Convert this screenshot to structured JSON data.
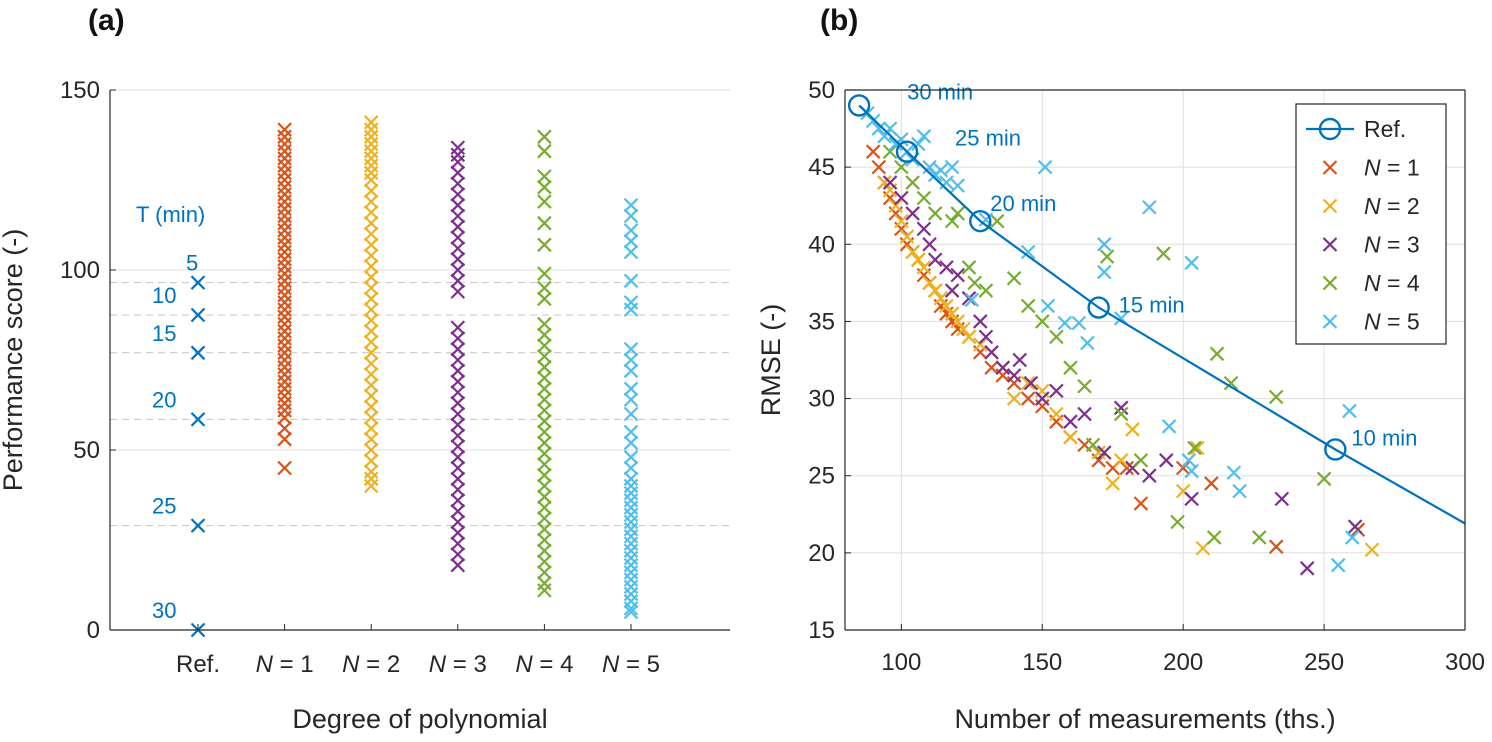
{
  "chart_data": [
    {
      "type": "scatter",
      "panel_label": "(a)",
      "xlabel": "Degree of polynomial",
      "ylabel": "Performance score (-)",
      "categories": [
        "Ref.",
        "N = 1",
        "N = 2",
        "N = 3",
        "N = 4",
        "N = 5"
      ],
      "ylim": [
        0,
        150
      ],
      "yticks": [
        0,
        50,
        100,
        150
      ],
      "grid": "horizontal",
      "ref_label_header": "T (min)",
      "ref_points": [
        {
          "label": "5",
          "value": 96.5
        },
        {
          "label": "10",
          "value": 87.5
        },
        {
          "label": "15",
          "value": 77
        },
        {
          "label": "20",
          "value": 58.5
        },
        {
          "label": "25",
          "value": 29
        },
        {
          "label": "30",
          "value": 0
        }
      ],
      "series": [
        {
          "name": "N = 1",
          "color": "#D95319",
          "values": [
            139,
            137,
            135,
            133,
            131,
            129,
            127,
            125,
            123,
            121,
            119,
            117,
            115,
            113,
            111,
            109,
            107,
            105,
            103,
            101,
            99,
            97,
            95,
            93,
            91,
            89,
            87,
            85,
            83,
            81,
            79,
            77,
            75,
            73,
            71,
            69,
            67,
            65,
            63,
            61,
            59,
            56,
            53,
            45
          ]
        },
        {
          "name": "N = 2",
          "color": "#EDB120",
          "values": [
            141,
            139,
            137,
            135,
            133,
            131,
            129,
            127,
            125,
            122,
            119,
            116,
            113,
            110,
            107,
            104,
            101,
            98,
            95,
            92,
            89,
            86,
            83,
            80,
            77,
            74,
            71,
            68,
            65,
            62,
            59,
            56,
            53,
            50,
            47,
            44,
            42,
            40
          ]
        },
        {
          "name": "N = 3",
          "color": "#7E2F8E",
          "values": [
            134,
            132,
            130,
            127,
            124,
            121,
            118,
            115,
            112,
            109,
            106,
            103,
            100,
            97,
            94,
            84,
            81,
            78,
            75,
            72,
            69,
            66,
            63,
            60,
            57,
            54,
            51,
            48,
            45,
            42,
            39,
            36,
            33,
            30,
            27,
            24,
            21,
            18
          ]
        },
        {
          "name": "N = 4",
          "color": "#77AC30",
          "values": [
            137,
            133,
            126,
            123,
            119,
            113,
            107,
            99,
            95,
            92,
            85,
            82,
            79,
            76,
            73,
            70,
            67,
            64,
            61,
            58,
            55,
            52,
            49,
            46,
            43,
            40,
            37,
            34,
            31,
            28,
            25,
            22,
            19,
            16,
            13,
            11
          ]
        },
        {
          "name": "N = 5",
          "color": "#4DBEEE",
          "values": [
            118,
            115,
            111,
            108,
            105,
            97,
            91,
            89,
            78,
            75,
            72,
            67,
            64,
            60,
            55,
            52,
            48,
            45,
            42,
            40,
            38,
            36,
            34,
            32,
            30,
            28,
            26,
            24,
            22,
            20,
            18,
            16,
            14,
            12,
            10,
            8,
            6,
            5
          ]
        }
      ]
    },
    {
      "type": "scatter",
      "panel_label": "(b)",
      "xlabel": "Number of measurements (ths.)",
      "ylabel": "RMSE (-)",
      "xlim": [
        80,
        300
      ],
      "ylim": [
        15,
        50
      ],
      "xticks": [
        100,
        150,
        200,
        250,
        300
      ],
      "yticks": [
        15,
        20,
        25,
        30,
        35,
        40,
        45,
        50
      ],
      "grid": "both",
      "legend": {
        "position": "top-right",
        "entries": [
          {
            "prefix": "",
            "label": "Ref.",
            "color": "#0072BD",
            "marker": "circle-line"
          },
          {
            "prefix": "N",
            "label": " = 1",
            "color": "#D95319",
            "marker": "x"
          },
          {
            "prefix": "N",
            "label": " = 2",
            "color": "#EDB120",
            "marker": "x"
          },
          {
            "prefix": "N",
            "label": " = 3",
            "color": "#7E2F8E",
            "marker": "x"
          },
          {
            "prefix": "N",
            "label": " = 4",
            "color": "#77AC30",
            "marker": "x"
          },
          {
            "prefix": "N",
            "label": " = 5",
            "color": "#4DBEEE",
            "marker": "x"
          }
        ]
      },
      "ref_line": {
        "color": "#0072BD",
        "points": [
          [
            85,
            49
          ],
          [
            102,
            46
          ],
          [
            128,
            41.5
          ],
          [
            170,
            35.9
          ],
          [
            254,
            26.7
          ],
          [
            300,
            21.9
          ]
        ],
        "labels": [
          {
            "x": 85,
            "y": 49,
            "text": "30 min"
          },
          {
            "x": 102,
            "y": 46,
            "text": "25 min"
          },
          {
            "x": 128,
            "y": 41.5,
            "text": "20 min"
          },
          {
            "x": 170,
            "y": 35.9,
            "text": "15 min"
          },
          {
            "x": 254,
            "y": 26.7,
            "text": "10 min"
          }
        ]
      },
      "series": [
        {
          "name": "N = 1",
          "color": "#D95319",
          "points": [
            [
              90,
              46
            ],
            [
              92,
              45
            ],
            [
              94,
              44
            ],
            [
              96,
              43
            ],
            [
              98,
              42
            ],
            [
              100,
              41
            ],
            [
              102,
              40
            ],
            [
              104,
              39.5
            ],
            [
              106,
              39
            ],
            [
              108,
              38
            ],
            [
              110,
              37.5
            ],
            [
              112,
              37
            ],
            [
              114,
              36
            ],
            [
              116,
              35.5
            ],
            [
              118,
              35
            ],
            [
              120,
              34.5
            ],
            [
              124,
              34
            ],
            [
              128,
              33
            ],
            [
              132,
              32
            ],
            [
              136,
              31.5
            ],
            [
              140,
              31
            ],
            [
              145,
              30
            ],
            [
              150,
              29.5
            ],
            [
              155,
              28.5
            ],
            [
              160,
              27.5
            ],
            [
              165,
              27
            ],
            [
              170,
              26
            ],
            [
              175,
              25.5
            ],
            [
              180,
              25.5
            ],
            [
              185,
              23.2
            ],
            [
              200,
              25.5
            ],
            [
              210,
              24.5
            ],
            [
              233,
              20.4
            ],
            [
              262,
              21.5
            ]
          ]
        },
        {
          "name": "N = 2",
          "color": "#EDB120",
          "points": [
            [
              94,
              44
            ],
            [
              96,
              43.5
            ],
            [
              98,
              42.5
            ],
            [
              100,
              41.5
            ],
            [
              102,
              40.5
            ],
            [
              104,
              39.5
            ],
            [
              106,
              39
            ],
            [
              108,
              38.5
            ],
            [
              110,
              37.5
            ],
            [
              112,
              37
            ],
            [
              114,
              36.5
            ],
            [
              116,
              36
            ],
            [
              118,
              35.5
            ],
            [
              120,
              35
            ],
            [
              122,
              34.5
            ],
            [
              124,
              34
            ],
            [
              128,
              33.5
            ],
            [
              132,
              33
            ],
            [
              136,
              32
            ],
            [
              140,
              30
            ],
            [
              145,
              31
            ],
            [
              150,
              30.5
            ],
            [
              155,
              29
            ],
            [
              160,
              27.5
            ],
            [
              170,
              26.5
            ],
            [
              175,
              24.5
            ],
            [
              178,
              26
            ],
            [
              182,
              25.5
            ],
            [
              182,
              28
            ],
            [
              200,
              24
            ],
            [
              205,
              26.8
            ],
            [
              207,
              20.3
            ],
            [
              267,
              20.2
            ]
          ]
        },
        {
          "name": "N = 3",
          "color": "#7E2F8E",
          "points": [
            [
              96,
              44
            ],
            [
              100,
              43
            ],
            [
              104,
              42
            ],
            [
              108,
              41
            ],
            [
              110,
              40
            ],
            [
              112,
              39
            ],
            [
              116,
              38.5
            ],
            [
              118,
              37
            ],
            [
              120,
              38
            ],
            [
              124,
              36.5
            ],
            [
              128,
              35
            ],
            [
              130,
              34
            ],
            [
              132,
              33
            ],
            [
              136,
              32
            ],
            [
              140,
              31.5
            ],
            [
              142,
              32.5
            ],
            [
              146,
              31
            ],
            [
              150,
              30
            ],
            [
              155,
              30.5
            ],
            [
              160,
              28.5
            ],
            [
              165,
              29
            ],
            [
              172,
              26.5
            ],
            [
              178,
              29.4
            ],
            [
              182,
              25.5
            ],
            [
              188,
              25
            ],
            [
              194,
              26
            ],
            [
              203,
              23.5
            ],
            [
              235,
              23.5
            ],
            [
              244,
              19
            ],
            [
              261,
              21.7
            ]
          ]
        },
        {
          "name": "N = 4",
          "color": "#77AC30",
          "points": [
            [
              96,
              46
            ],
            [
              100,
              45
            ],
            [
              104,
              44
            ],
            [
              108,
              43
            ],
            [
              112,
              42
            ],
            [
              118,
              41.5
            ],
            [
              120,
              42
            ],
            [
              124,
              38.5
            ],
            [
              126,
              37.5
            ],
            [
              130,
              37
            ],
            [
              134,
              41.5
            ],
            [
              140,
              37.8
            ],
            [
              145,
              36
            ],
            [
              150,
              35
            ],
            [
              155,
              34
            ],
            [
              160,
              32
            ],
            [
              165,
              30.8
            ],
            [
              168,
              27
            ],
            [
              173,
              39.2
            ],
            [
              178,
              29
            ],
            [
              185,
              26
            ],
            [
              193,
              39.4
            ],
            [
              198,
              22
            ],
            [
              204,
              26.8
            ],
            [
              211,
              21
            ],
            [
              212,
              32.9
            ],
            [
              217,
              31
            ],
            [
              227,
              21
            ],
            [
              233,
              30.1
            ],
            [
              250,
              24.8
            ]
          ]
        },
        {
          "name": "N = 5",
          "color": "#4DBEEE",
          "points": [
            [
              88,
              48.5
            ],
            [
              90,
              48
            ],
            [
              92,
              47.5
            ],
            [
              94,
              47
            ],
            [
              96,
              47.5
            ],
            [
              98,
              46.5
            ],
            [
              100,
              46.8
            ],
            [
              102,
              46
            ],
            [
              104,
              45.5
            ],
            [
              106,
              46.5
            ],
            [
              108,
              47
            ],
            [
              110,
              45
            ],
            [
              112,
              44.5
            ],
            [
              114,
              44.8
            ],
            [
              116,
              44
            ],
            [
              118,
              45
            ],
            [
              120,
              43.8
            ],
            [
              125,
              36.4
            ],
            [
              130,
              41.6
            ],
            [
              145,
              39.5
            ],
            [
              151,
              45
            ],
            [
              152,
              36
            ],
            [
              158,
              34.9
            ],
            [
              163,
              34.9
            ],
            [
              166,
              33.6
            ],
            [
              172,
              38.2
            ],
            [
              172,
              40
            ],
            [
              178,
              35.2
            ],
            [
              188,
              42.4
            ],
            [
              195,
              28.2
            ],
            [
              202,
              26
            ],
            [
              203,
              25.3
            ],
            [
              203,
              38.8
            ],
            [
              218,
              25.2
            ],
            [
              220,
              24
            ],
            [
              255,
              19.2
            ],
            [
              259,
              29.2
            ],
            [
              260,
              21
            ]
          ]
        }
      ]
    }
  ]
}
